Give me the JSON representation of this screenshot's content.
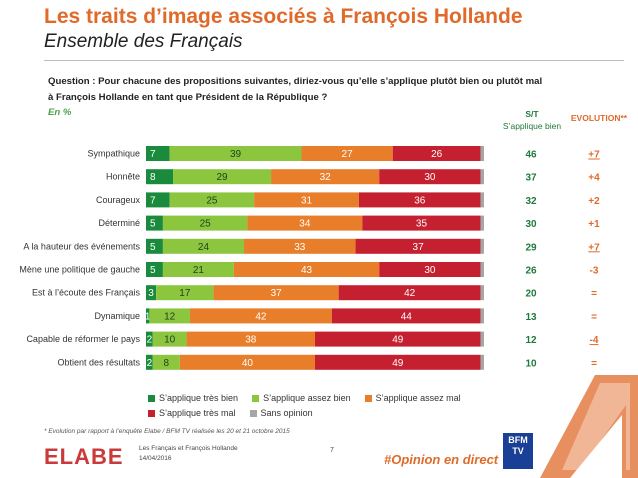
{
  "header": {
    "title": "Les traits d’image associés à François Hollande",
    "subtitle": "Ensemble des Français"
  },
  "question": {
    "line1": "Question : Pour chacune des propositions suivantes, diriez-vous qu’elle s’applique plutôt bien ou plutôt mal",
    "line2": "à François Hollande en tant que Président de la République ?",
    "unit": "En %"
  },
  "columns": {
    "st_line1": "S/T",
    "st_line2": "S’applique bien",
    "evolution": "EVOLUTION**"
  },
  "chart_data": {
    "type": "bar",
    "orientation": "horizontal",
    "stacked": true,
    "unit": "%",
    "categories": [
      "Sympathique",
      "Honnête",
      "Courageux",
      "Déterminé",
      "A la hauteur des événements",
      "Mène une politique de gauche",
      "Est à l’écoute des Français",
      "Dynamique",
      "Capable de réformer le pays",
      "Obtient des résultats"
    ],
    "series": [
      {
        "name": "S’applique très bien",
        "color": "#1a8a3c",
        "values": [
          7,
          8,
          7,
          5,
          5,
          5,
          3,
          1,
          2,
          2
        ]
      },
      {
        "name": "S’applique assez bien",
        "color": "#8cc63f",
        "values": [
          39,
          29,
          25,
          25,
          24,
          21,
          17,
          12,
          10,
          8
        ]
      },
      {
        "name": "S’applique assez mal",
        "color": "#e87d2a",
        "values": [
          27,
          32,
          31,
          34,
          33,
          43,
          37,
          42,
          38,
          40
        ]
      },
      {
        "name": "S’applique très mal",
        "color": "#c4202f",
        "values": [
          26,
          30,
          36,
          35,
          37,
          30,
          42,
          44,
          49,
          49
        ]
      },
      {
        "name": "Sans opinion",
        "color": "#a6a6a6",
        "values": [
          1,
          1,
          1,
          1,
          1,
          1,
          1,
          1,
          1,
          1
        ]
      }
    ],
    "totals_st": [
      "46",
      "37",
      "32",
      "30",
      "29",
      "26",
      "20",
      "13",
      "12",
      "10"
    ],
    "evolution": [
      "+7",
      "+4",
      "+2",
      "+1",
      "+7",
      "-3",
      "=",
      "=",
      "-4",
      "="
    ],
    "evolution_underlined": [
      true,
      false,
      false,
      false,
      true,
      false,
      false,
      false,
      true,
      false
    ],
    "xlim": [
      0,
      100
    ],
    "legend_position": "bottom"
  },
  "footer": {
    "footnote": "* Evolution par rapport à l’enquête Elabe / BFM TV réalisée les 20 et 21 octobre 2015",
    "logo": "ELABE",
    "study": "Les Français et François Hollande",
    "date": "14/04/2016",
    "page": "7",
    "hashtag": "#Opinion en direct",
    "bfm_line1": "BFM",
    "bfm_line2": "TV"
  }
}
